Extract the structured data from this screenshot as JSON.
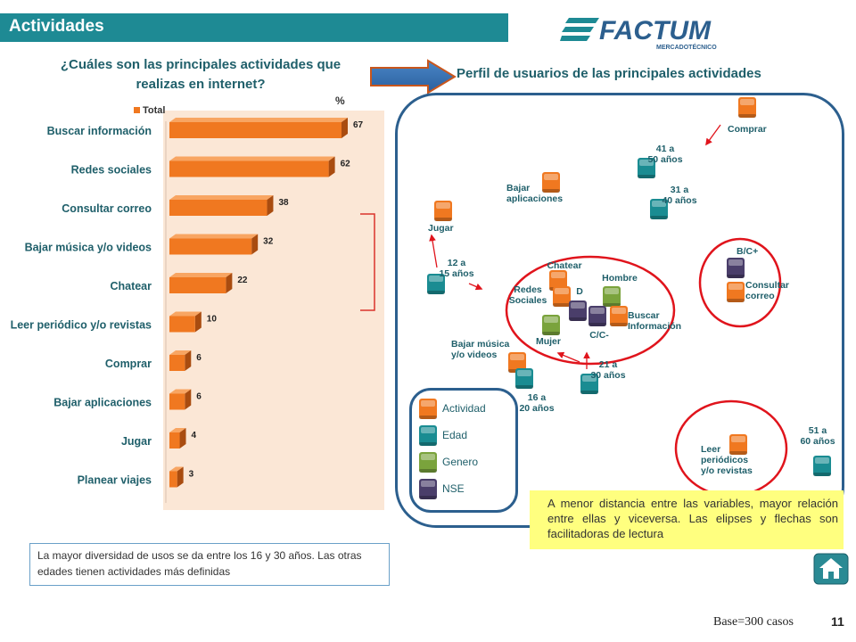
{
  "header": {
    "title": "Actividades"
  },
  "logo": {
    "text": "FACTUM",
    "subtext": "MERCADOTÉCNICO"
  },
  "left_panel": {
    "title_line1": "¿Cuáles son las principales actividades que",
    "title_line2": "realizas en internet?",
    "unit": "%"
  },
  "right_panel": {
    "title": "Perfil de usuarios de las principales actividades"
  },
  "colors": {
    "header": "#1e8a94",
    "bar": "#f07820",
    "panel_border": "#2c5f8e",
    "note_bg": "#ffff7f"
  },
  "chart_data": [
    {
      "type": "bar",
      "orientation": "horizontal",
      "categories": [
        "Buscar información",
        "Redes sociales",
        "Consultar correo",
        "Bajar música y/o videos",
        "Chatear",
        "Leer periódico y/o revistas",
        "Comprar",
        "Bajar aplicaciones",
        "Jugar",
        "Planear viajes"
      ],
      "series": [
        {
          "name": "Total",
          "values": [
            67,
            62,
            38,
            32,
            22,
            10,
            6,
            6,
            4,
            3
          ]
        }
      ],
      "xlim": [
        0,
        70
      ],
      "legend": "top-left",
      "grid": false
    },
    {
      "type": "scatter",
      "legend": "bottom-left",
      "legend_items": [
        {
          "label": "Actividad",
          "color": "#f07820"
        },
        {
          "label": "Edad",
          "color": "#1a8c92"
        },
        {
          "label": "Genero",
          "color": "#7aa33c"
        },
        {
          "label": "NSE",
          "color": "#4a3e6a"
        }
      ],
      "points": [
        {
          "label": "Comprar",
          "group": "Actividad"
        },
        {
          "label": "41 a 50 años",
          "group": "Edad"
        },
        {
          "label": "Bajar aplicaciones",
          "group": "Actividad"
        },
        {
          "label": "31 a 40 años",
          "group": "Edad"
        },
        {
          "label": "Jugar",
          "group": "Actividad"
        },
        {
          "label": "B/C+",
          "group": "NSE"
        },
        {
          "label": "12 a 15 años",
          "group": "Edad"
        },
        {
          "label": "Chatear",
          "group": "Actividad"
        },
        {
          "label": "Hombre",
          "group": "Genero"
        },
        {
          "label": "Consultar correo",
          "group": "Actividad"
        },
        {
          "label": "Redes Sociales",
          "group": "Actividad"
        },
        {
          "label": "D",
          "group": "NSE"
        },
        {
          "label": "Buscar Información",
          "group": "Actividad"
        },
        {
          "label": "C/C-",
          "group": "NSE"
        },
        {
          "label": "Mujer",
          "group": "Genero"
        },
        {
          "label": "Bajar música y/o videos",
          "group": "Actividad"
        },
        {
          "label": "21 a 30 años",
          "group": "Edad"
        },
        {
          "label": "16 a 20 años",
          "group": "Edad"
        },
        {
          "label": "Leer periódicos y/o revistas",
          "group": "Actividad"
        },
        {
          "label": "51 a 60 años",
          "group": "Edad"
        }
      ]
    }
  ],
  "note": "A menor distancia entre las variables, mayor relación  entre ellas y viceversa. Las elipses y flechas son facilitadoras de lectura",
  "conclusion": "La mayor diversidad de usos se da entre los 16 y 30 años. Las otras edades tienen actividades más definidas",
  "footer": {
    "base": "Base=300 casos",
    "page": "11"
  }
}
